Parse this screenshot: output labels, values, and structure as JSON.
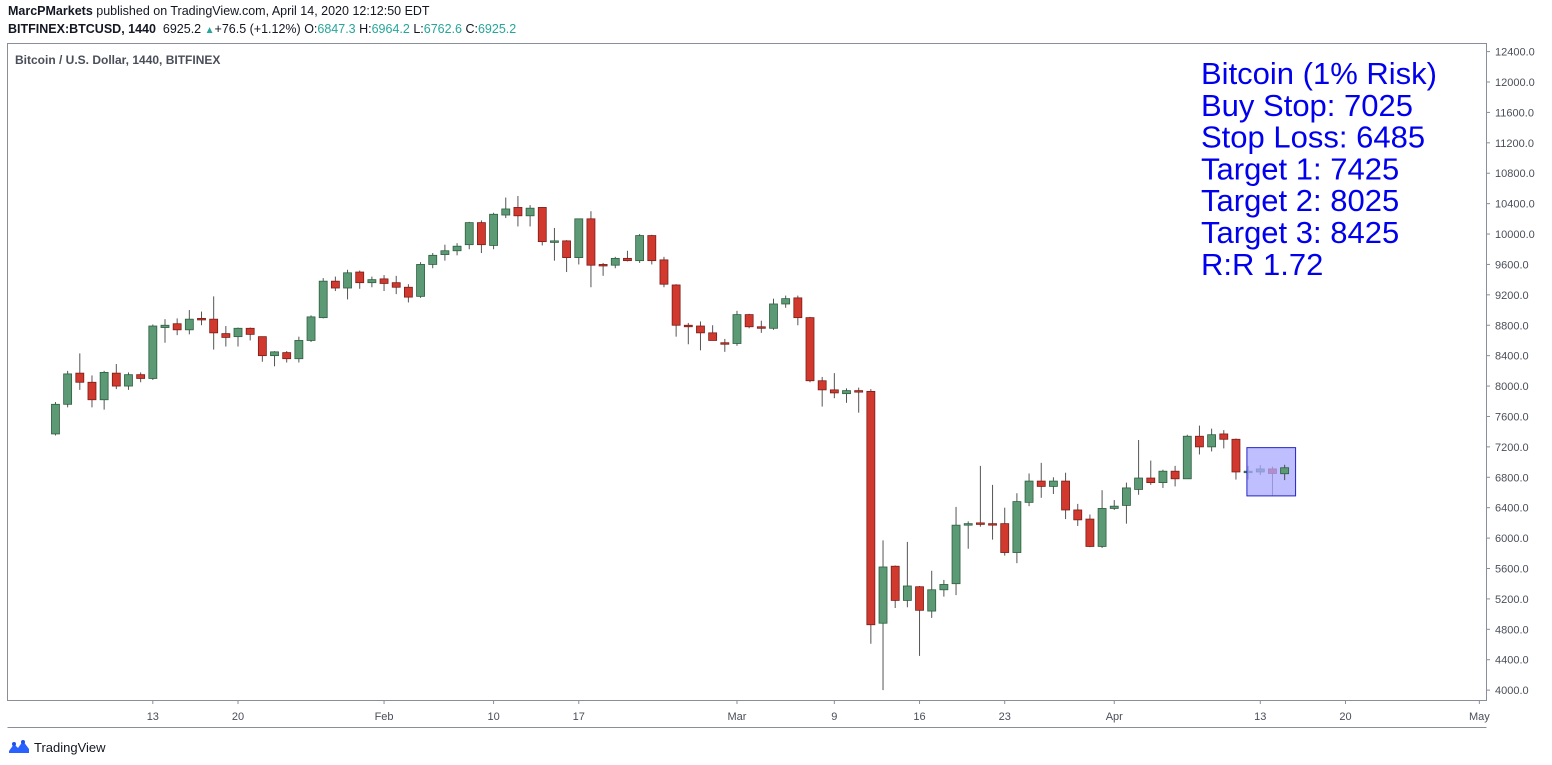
{
  "header": {
    "author": "MarcPMarkets",
    "published_text": "published on TradingView.com, April 14, 2020 12:12:50 EDT",
    "symbol_line": "BITFINEX:BTCUSD, 1440",
    "last": "6925.2",
    "change_arrow": "▲",
    "change": "+76.5 (+1.12%)",
    "o_label": "O:",
    "o_value": "6847.3",
    "h_label": "H:",
    "h_value": "6964.2",
    "l_label": "L:",
    "l_value": "6762.6",
    "c_label": "C:",
    "c_value": "6925.2"
  },
  "footer": {
    "brand": "TradingView",
    "logo_icon": "tradingview-logo-icon"
  },
  "chart_data": {
    "type": "candlestick",
    "title": "Bitcoin / U.S. Dollar, 1440, BITFINEX",
    "ylim": [
      3870,
      12500
    ],
    "y_ticks": [
      "4000.0",
      "4400.0",
      "4800.0",
      "5200.0",
      "5600.0",
      "6000.0",
      "6400.0",
      "6800.0",
      "7200.0",
      "7600.0",
      "8000.0",
      "8400.0",
      "8800.0",
      "9200.0",
      "9600.0",
      "10000.0",
      "10400.0",
      "10800.0",
      "11200.0",
      "11600.0",
      "12000.0",
      "12400.0"
    ],
    "x_ticks": [
      {
        "label": "13",
        "day": 13
      },
      {
        "label": "20",
        "day": 20
      },
      {
        "label": "Feb",
        "day": 32
      },
      {
        "label": "10",
        "day": 41
      },
      {
        "label": "17",
        "day": 48
      },
      {
        "label": "Mar",
        "day": 61
      },
      {
        "label": "9",
        "day": 69
      },
      {
        "label": "16",
        "day": 76
      },
      {
        "label": "23",
        "day": 83
      },
      {
        "label": "Apr",
        "day": 92
      },
      {
        "label": "13",
        "day": 104
      },
      {
        "label": "20",
        "day": 111
      },
      {
        "label": "May",
        "day": 122
      }
    ],
    "x_start_day": 5,
    "x_end_day": 106,
    "colors": {
      "up": "#5b9a75",
      "down": "#d2392e",
      "up_border": "#2e5e40",
      "down_border": "#7a1d17",
      "wick": "#555555"
    },
    "annotation": {
      "lines": [
        "Bitcoin (1% Risk)",
        "Buy Stop: 7025",
        "Stop Loss: 6485",
        "Target 1: 7425",
        "Target 2: 8025",
        "Target 3: 8425",
        "R:R 1.72"
      ],
      "color": "#0000ee"
    },
    "highlight_box": {
      "x1": 102.9,
      "x2": 106.9,
      "y1": 6555,
      "y2": 7190,
      "fill": "#aaaaff",
      "stroke": "#2222cc"
    },
    "candles": [
      {
        "o": 7370,
        "h": 7790,
        "l": 7350,
        "c": 7760
      },
      {
        "o": 7760,
        "h": 8200,
        "l": 7720,
        "c": 8160
      },
      {
        "o": 8170,
        "h": 8430,
        "l": 7950,
        "c": 8050
      },
      {
        "o": 8050,
        "h": 8140,
        "l": 7720,
        "c": 7820
      },
      {
        "o": 7820,
        "h": 8200,
        "l": 7690,
        "c": 8180
      },
      {
        "o": 8170,
        "h": 8290,
        "l": 7960,
        "c": 8000
      },
      {
        "o": 8000,
        "h": 8180,
        "l": 7950,
        "c": 8150
      },
      {
        "o": 8150,
        "h": 8180,
        "l": 8050,
        "c": 8100
      },
      {
        "o": 8100,
        "h": 8810,
        "l": 8080,
        "c": 8790
      },
      {
        "o": 8770,
        "h": 8880,
        "l": 8570,
        "c": 8800
      },
      {
        "o": 8820,
        "h": 8890,
        "l": 8670,
        "c": 8740
      },
      {
        "o": 8740,
        "h": 9000,
        "l": 8680,
        "c": 8880
      },
      {
        "o": 8890,
        "h": 8980,
        "l": 8800,
        "c": 8870
      },
      {
        "o": 8880,
        "h": 9180,
        "l": 8480,
        "c": 8700
      },
      {
        "o": 8690,
        "h": 8790,
        "l": 8520,
        "c": 8640
      },
      {
        "o": 8650,
        "h": 8770,
        "l": 8520,
        "c": 8760
      },
      {
        "o": 8760,
        "h": 8770,
        "l": 8600,
        "c": 8680
      },
      {
        "o": 8650,
        "h": 8650,
        "l": 8320,
        "c": 8400
      },
      {
        "o": 8400,
        "h": 8460,
        "l": 8260,
        "c": 8450
      },
      {
        "o": 8440,
        "h": 8460,
        "l": 8310,
        "c": 8360
      },
      {
        "o": 8360,
        "h": 8650,
        "l": 8310,
        "c": 8600
      },
      {
        "o": 8600,
        "h": 8930,
        "l": 8580,
        "c": 8910
      },
      {
        "o": 8900,
        "h": 9420,
        "l": 8890,
        "c": 9380
      },
      {
        "o": 9380,
        "h": 9440,
        "l": 9250,
        "c": 9290
      },
      {
        "o": 9290,
        "h": 9530,
        "l": 9140,
        "c": 9490
      },
      {
        "o": 9500,
        "h": 9520,
        "l": 9280,
        "c": 9360
      },
      {
        "o": 9360,
        "h": 9440,
        "l": 9300,
        "c": 9400
      },
      {
        "o": 9410,
        "h": 9460,
        "l": 9250,
        "c": 9350
      },
      {
        "o": 9360,
        "h": 9450,
        "l": 9210,
        "c": 9300
      },
      {
        "o": 9300,
        "h": 9340,
        "l": 9100,
        "c": 9170
      },
      {
        "o": 9180,
        "h": 9630,
        "l": 9160,
        "c": 9600
      },
      {
        "o": 9600,
        "h": 9750,
        "l": 9550,
        "c": 9720
      },
      {
        "o": 9730,
        "h": 9860,
        "l": 9650,
        "c": 9780
      },
      {
        "o": 9780,
        "h": 9880,
        "l": 9720,
        "c": 9840
      },
      {
        "o": 9860,
        "h": 10160,
        "l": 9800,
        "c": 10150
      },
      {
        "o": 10150,
        "h": 10180,
        "l": 9750,
        "c": 9860
      },
      {
        "o": 9850,
        "h": 10280,
        "l": 9800,
        "c": 10260
      },
      {
        "o": 10250,
        "h": 10480,
        "l": 10210,
        "c": 10330
      },
      {
        "o": 10350,
        "h": 10500,
        "l": 10100,
        "c": 10240
      },
      {
        "o": 10240,
        "h": 10380,
        "l": 10100,
        "c": 10340
      },
      {
        "o": 10350,
        "h": 10350,
        "l": 9850,
        "c": 9900
      },
      {
        "o": 9890,
        "h": 10080,
        "l": 9650,
        "c": 9910
      },
      {
        "o": 9910,
        "h": 9920,
        "l": 9500,
        "c": 9690
      },
      {
        "o": 9690,
        "h": 10200,
        "l": 9600,
        "c": 10200
      },
      {
        "o": 10200,
        "h": 10300,
        "l": 9300,
        "c": 9590
      },
      {
        "o": 9600,
        "h": 9620,
        "l": 9450,
        "c": 9590
      },
      {
        "o": 9590,
        "h": 9700,
        "l": 9550,
        "c": 9680
      },
      {
        "o": 9680,
        "h": 9780,
        "l": 9640,
        "c": 9650
      },
      {
        "o": 9650,
        "h": 10000,
        "l": 9620,
        "c": 9980
      },
      {
        "o": 9980,
        "h": 9990,
        "l": 9600,
        "c": 9650
      },
      {
        "o": 9660,
        "h": 9700,
        "l": 9300,
        "c": 9340
      },
      {
        "o": 9330,
        "h": 9340,
        "l": 8650,
        "c": 8800
      },
      {
        "o": 8800,
        "h": 8830,
        "l": 8550,
        "c": 8790
      },
      {
        "o": 8790,
        "h": 8850,
        "l": 8470,
        "c": 8700
      },
      {
        "o": 8700,
        "h": 8800,
        "l": 8600,
        "c": 8600
      },
      {
        "o": 8570,
        "h": 8620,
        "l": 8450,
        "c": 8560
      },
      {
        "o": 8560,
        "h": 8990,
        "l": 8530,
        "c": 8940
      },
      {
        "o": 8940,
        "h": 8950,
        "l": 8760,
        "c": 8780
      },
      {
        "o": 8780,
        "h": 8860,
        "l": 8700,
        "c": 8760
      },
      {
        "o": 8760,
        "h": 9150,
        "l": 8740,
        "c": 9080
      },
      {
        "o": 9080,
        "h": 9190,
        "l": 9030,
        "c": 9150
      },
      {
        "o": 9160,
        "h": 9190,
        "l": 8800,
        "c": 8900
      },
      {
        "o": 8900,
        "h": 8910,
        "l": 8050,
        "c": 8070
      },
      {
        "o": 8070,
        "h": 8120,
        "l": 7730,
        "c": 7950
      },
      {
        "o": 7950,
        "h": 8170,
        "l": 7840,
        "c": 7910
      },
      {
        "o": 7900,
        "h": 7970,
        "l": 7780,
        "c": 7940
      },
      {
        "o": 7940,
        "h": 7980,
        "l": 7650,
        "c": 7930
      },
      {
        "o": 7930,
        "h": 7960,
        "l": 4610,
        "c": 4860
      },
      {
        "o": 4880,
        "h": 5970,
        "l": 4000,
        "c": 5620
      },
      {
        "o": 5630,
        "h": 5640,
        "l": 5080,
        "c": 5180
      },
      {
        "o": 5180,
        "h": 5950,
        "l": 5090,
        "c": 5370
      },
      {
        "o": 5360,
        "h": 5370,
        "l": 4450,
        "c": 5050
      },
      {
        "o": 5040,
        "h": 5570,
        "l": 4950,
        "c": 5320
      },
      {
        "o": 5320,
        "h": 5450,
        "l": 5230,
        "c": 5390
      },
      {
        "o": 5400,
        "h": 6410,
        "l": 5250,
        "c": 6170
      },
      {
        "o": 6180,
        "h": 6220,
        "l": 5860,
        "c": 6190
      },
      {
        "o": 6200,
        "h": 6950,
        "l": 6150,
        "c": 6190
      },
      {
        "o": 6190,
        "h": 6700,
        "l": 5980,
        "c": 6180
      },
      {
        "o": 6190,
        "h": 6400,
        "l": 5770,
        "c": 5810
      },
      {
        "o": 5810,
        "h": 6590,
        "l": 5670,
        "c": 6480
      },
      {
        "o": 6470,
        "h": 6850,
        "l": 6420,
        "c": 6750
      },
      {
        "o": 6750,
        "h": 6990,
        "l": 6530,
        "c": 6680
      },
      {
        "o": 6680,
        "h": 6800,
        "l": 6580,
        "c": 6750
      },
      {
        "o": 6750,
        "h": 6860,
        "l": 6250,
        "c": 6370
      },
      {
        "o": 6370,
        "h": 6450,
        "l": 6160,
        "c": 6240
      },
      {
        "o": 6250,
        "h": 6310,
        "l": 5880,
        "c": 5890
      },
      {
        "o": 5890,
        "h": 6630,
        "l": 5870,
        "c": 6390
      },
      {
        "o": 6390,
        "h": 6500,
        "l": 6370,
        "c": 6420
      },
      {
        "o": 6430,
        "h": 6730,
        "l": 6190,
        "c": 6660
      },
      {
        "o": 6640,
        "h": 7290,
        "l": 6570,
        "c": 6790
      },
      {
        "o": 6790,
        "h": 7020,
        "l": 6700,
        "c": 6730
      },
      {
        "o": 6730,
        "h": 6900,
        "l": 6660,
        "c": 6880
      },
      {
        "o": 6880,
        "h": 6950,
        "l": 6680,
        "c": 6780
      },
      {
        "o": 6780,
        "h": 7360,
        "l": 6780,
        "c": 7340
      },
      {
        "o": 7340,
        "h": 7480,
        "l": 7100,
        "c": 7200
      },
      {
        "o": 7200,
        "h": 7440,
        "l": 7140,
        "c": 7360
      },
      {
        "o": 7370,
        "h": 7420,
        "l": 7180,
        "c": 7300
      },
      {
        "o": 7300,
        "h": 7310,
        "l": 6770,
        "c": 6870
      },
      {
        "o": 6870,
        "h": 6950,
        "l": 6770,
        "c": 6880
      },
      {
        "o": 6870,
        "h": 6960,
        "l": 6830,
        "c": 6910
      },
      {
        "o": 6910,
        "h": 6940,
        "l": 6560,
        "c": 6850
      },
      {
        "o": 6847,
        "h": 6964,
        "l": 6763,
        "c": 6925
      }
    ]
  }
}
